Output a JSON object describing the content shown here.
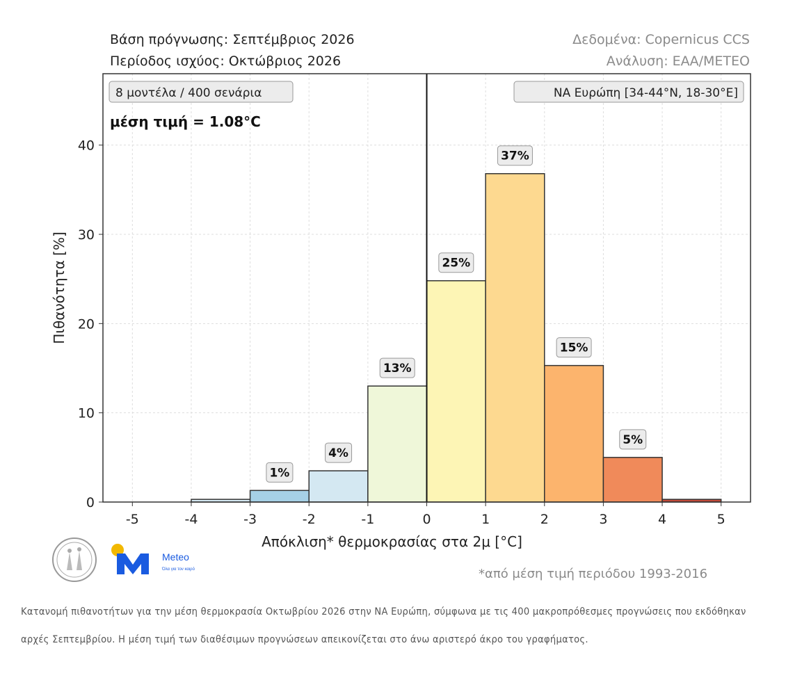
{
  "header": {
    "forecast_base": "Βάση πρόγνωσης: Σεπτέμβριος 2026",
    "validity_period": "Περίοδος ισχύος: Οκτώβριος 2026",
    "data_source": "Δεδομένα: Copernicus CCS",
    "analysis": "Ανάλυση: ΕΑΑ/ΜΕΤΕΟ"
  },
  "chart_data": {
    "type": "bar",
    "ylabel": "Πιθανότητα [%]",
    "xlabel": "Απόκλιση* θερμοκρασίας στα 2μ [°C]",
    "ylim": [
      0,
      48
    ],
    "xlim": [
      -5.5,
      5.5
    ],
    "x_ticks": [
      "-5",
      "-4",
      "-3",
      "-2",
      "-1",
      "0",
      "1",
      "2",
      "3",
      "4",
      "5"
    ],
    "y_ticks": [
      "0",
      "10",
      "20",
      "30",
      "40"
    ],
    "grid": true,
    "bins": [
      {
        "from": -4,
        "to": -3,
        "value": 0.3,
        "label": "",
        "color": "#d6e9f3"
      },
      {
        "from": -3,
        "to": -2,
        "value": 1.3,
        "label": "1%",
        "color": "#a6d0e6"
      },
      {
        "from": -2,
        "to": -1,
        "value": 3.5,
        "label": "4%",
        "color": "#d4e8f2"
      },
      {
        "from": -1,
        "to": 0,
        "value": 13.0,
        "label": "13%",
        "color": "#eff7d9"
      },
      {
        "from": 0,
        "to": 1,
        "value": 24.8,
        "label": "25%",
        "color": "#fdf5b5"
      },
      {
        "from": 1,
        "to": 2,
        "value": 36.8,
        "label": "37%",
        "color": "#fdd990"
      },
      {
        "from": 2,
        "to": 3,
        "value": 15.3,
        "label": "15%",
        "color": "#fcb46d"
      },
      {
        "from": 3,
        "to": 4,
        "value": 5.0,
        "label": "5%",
        "color": "#f08a5a"
      },
      {
        "from": 4,
        "to": 5,
        "value": 0.3,
        "label": "",
        "color": "#c24a3a"
      }
    ],
    "mean_line_x": 0,
    "annotations": {
      "ensemble": "8 μοντέλα / 400 σενάρια",
      "mean": "μέση τιμή = 1.08°C",
      "region": "ΝΑ Ευρώπη [34-44°N, 18-30°E]"
    }
  },
  "footnote": "*από μέση τιμή περιόδου 1993-2016",
  "logo": {
    "meteo_text": "Meteo",
    "meteo_tagline": "Όλα για τον καιρό"
  },
  "caption": "Κατανομή πιθανοτήτων για την μέση θερμοκρασία Οκτωβρίου 2026 στην ΝΑ Ευρώπη, σύμφωνα με τις 400 μακροπρόθεσμες προγνώσεις που εκδόθηκαν αρχές Σεπτεμβρίου. Η μέση τιμή των διαθέσιμων προγνώσεων απεικονίζεται στο άνω αριστερό άκρο του γραφήματος."
}
